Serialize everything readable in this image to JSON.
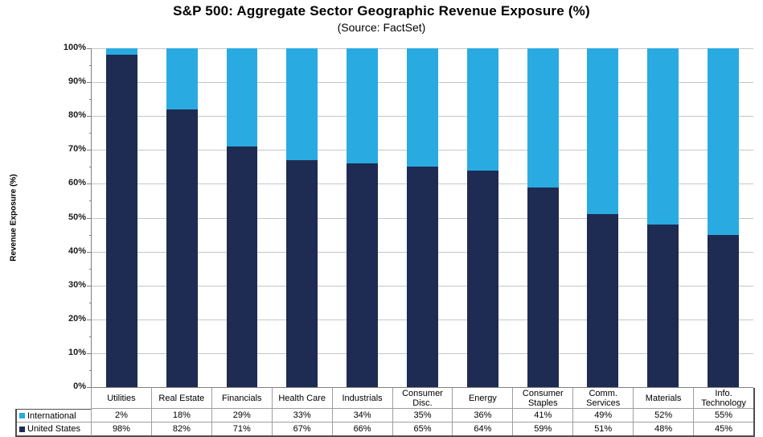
{
  "header": {
    "title": "S&P 500: Aggregate Sector Geographic Revenue Exposure (%)",
    "subtitle": "(Source: FactSet)"
  },
  "y_axis": {
    "label": "Revenue Exposure (%)",
    "tick_labels": [
      "100%",
      "90%",
      "80%",
      "70%",
      "60%",
      "50%",
      "40%",
      "30%",
      "20%",
      "10%",
      "0%"
    ],
    "major_step": 10,
    "minor_step": 5
  },
  "colors": {
    "international": "#29ABE2",
    "united_states": "#1E2B52",
    "gridline": "#C6C6C6",
    "axis": "#808080"
  },
  "chart_data": {
    "type": "bar",
    "stacked": true,
    "title": "S&P 500: Aggregate Sector Geographic Revenue Exposure (%)",
    "subtitle": "(Source: FactSet)",
    "ylabel": "Revenue Exposure (%)",
    "ylim": [
      0,
      100
    ],
    "grid": "horizontal-major-10pct",
    "legend_position": "table-left",
    "categories": [
      "Utilities",
      "Real Estate",
      "Financials",
      "Health Care",
      "Industrials",
      "Consumer Disc.",
      "Energy",
      "Consumer Staples",
      "Comm. Services",
      "Materials",
      "Info. Technology"
    ],
    "series": [
      {
        "name": "International",
        "color": "#29ABE2",
        "values": [
          2,
          18,
          29,
          33,
          34,
          35,
          36,
          41,
          49,
          52,
          55
        ],
        "display": [
          "2%",
          "18%",
          "29%",
          "33%",
          "34%",
          "35%",
          "36%",
          "41%",
          "49%",
          "52%",
          "55%"
        ]
      },
      {
        "name": "United States",
        "color": "#1E2B52",
        "values": [
          98,
          82,
          71,
          67,
          66,
          65,
          64,
          59,
          51,
          48,
          45
        ],
        "display": [
          "98%",
          "82%",
          "71%",
          "67%",
          "66%",
          "65%",
          "64%",
          "59%",
          "51%",
          "48%",
          "45%"
        ]
      }
    ]
  }
}
